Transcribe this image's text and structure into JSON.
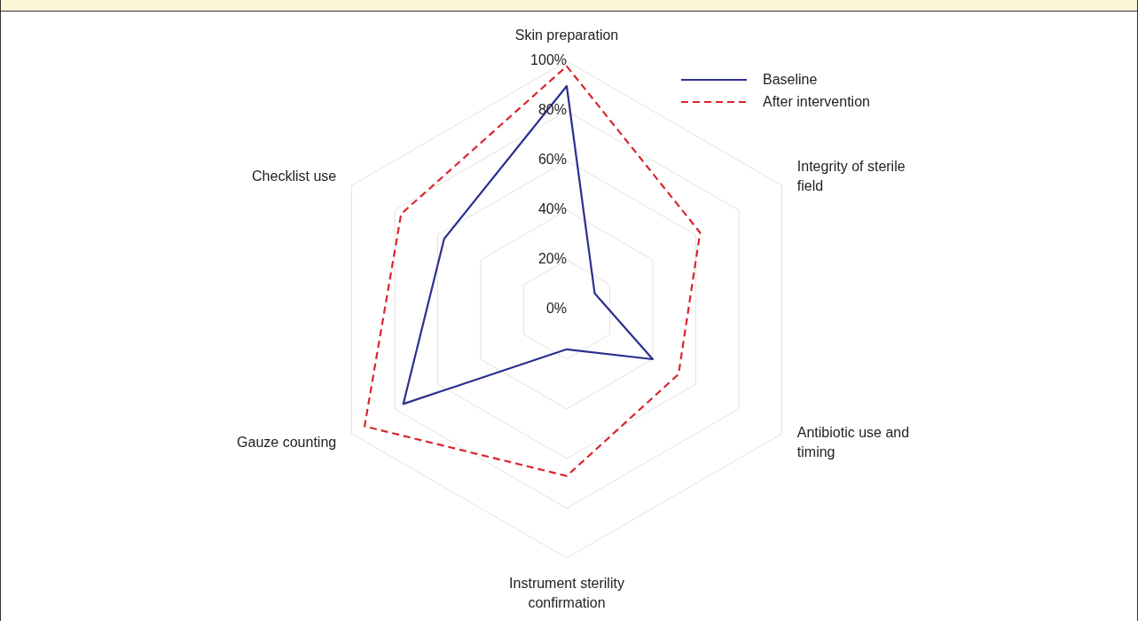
{
  "chart_data": {
    "type": "radar",
    "categories": [
      "Skin preparation",
      "Integrity of sterile field",
      "Antibiotic use and timing",
      "Instrument sterility confirmation",
      "Gauze counting",
      "Checklist use"
    ],
    "series": [
      {
        "name": "Baseline",
        "color": "#2b2f8f",
        "values": [
          90,
          13,
          40,
          16,
          76,
          57
        ],
        "line_style": "solid"
      },
      {
        "name": "After intervention",
        "color": "#d7262f",
        "values": [
          98,
          62,
          52,
          67,
          94,
          77
        ],
        "line_style": "dashed"
      }
    ],
    "ylim": [
      0,
      100
    ],
    "yticks": [
      {
        "value": 0,
        "label": "0%"
      },
      {
        "value": 20,
        "label": "20%"
      },
      {
        "value": 40,
        "label": "40%"
      },
      {
        "value": 60,
        "label": "60%"
      },
      {
        "value": 80,
        "label": "80%"
      },
      {
        "value": 100,
        "label": "100%"
      }
    ],
    "grid": true,
    "legend": "top right",
    "marker": "none"
  }
}
